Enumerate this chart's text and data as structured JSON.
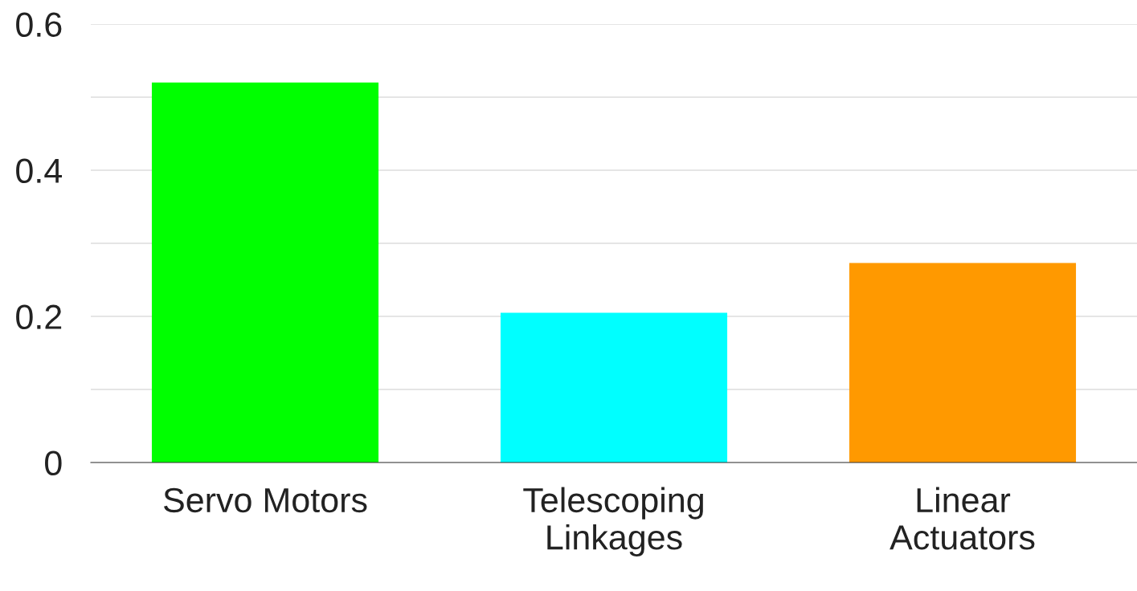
{
  "chart_data": {
    "type": "bar",
    "categories": [
      "Servo Motors",
      "Telescoping Linkages",
      "Linear Actuators"
    ],
    "values": [
      0.52,
      0.205,
      0.273
    ],
    "colors": [
      "#00ff00",
      "#00ffff",
      "#ff9900"
    ],
    "ylim": [
      0,
      0.6
    ],
    "yticks": [
      0,
      {
        "value": 0.1,
        "label": null
      },
      0.2,
      {
        "value": 0.3,
        "label": null
      },
      0.4,
      {
        "value": 0.5,
        "label": null
      },
      0.6
    ],
    "grid": "y"
  }
}
